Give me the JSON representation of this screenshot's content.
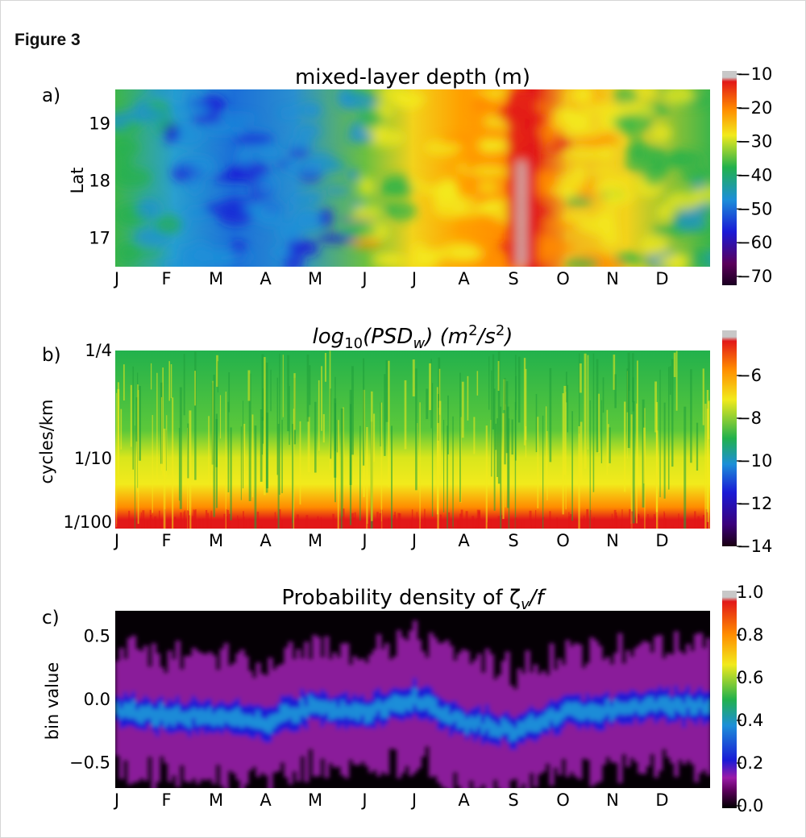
{
  "figure_label": "Figure 3",
  "chart_data": [
    {
      "panel": "a)",
      "type": "heatmap",
      "title": "mixed-layer depth (m)",
      "ylabel": "Lat",
      "xlabel": "",
      "x_ticks": [
        "J",
        "F",
        "M",
        "A",
        "M",
        "J",
        "J",
        "A",
        "S",
        "O",
        "N",
        "D"
      ],
      "y_ticks": [
        "19",
        "18",
        "17"
      ],
      "ylim": [
        16.5,
        19.6
      ],
      "colorbar_ticks": [
        "−10",
        "−20",
        "−30",
        "−40",
        "−50",
        "−60",
        "−70"
      ],
      "colorbar_range": [
        -72,
        -8
      ],
      "colormap": [
        "#5a005a",
        "#1a1ad6",
        "#1c8fd8",
        "#22b14c",
        "#f2ea1c",
        "#ff8c00",
        "#e21818",
        "#c8c8c8"
      ],
      "monthly_mean_mld": [
        -45,
        -52,
        -58,
        -55,
        -50,
        -30,
        -28,
        -25,
        -15,
        -28,
        -35,
        -40
      ]
    },
    {
      "panel": "b)",
      "type": "heatmap",
      "title_parts": {
        "pre": "log",
        "sub1": "10",
        "mid": "(PSD",
        "sub2": "w",
        "post": ") (m",
        "sup1": "2",
        "slash": "/s",
        "sup2": "2",
        "end": ")"
      },
      "ylabel": "cycles/km",
      "xlabel": "",
      "x_ticks": [
        "J",
        "F",
        "M",
        "A",
        "M",
        "J",
        "J",
        "A",
        "S",
        "O",
        "N",
        "D"
      ],
      "y_ticks": [
        "1/4",
        "1/10",
        "1/100"
      ],
      "colorbar_ticks": [
        "−6",
        "−8",
        "−10",
        "−12",
        "−14"
      ],
      "colorbar_range": [
        -14.5,
        -4.5
      ],
      "colormap": [
        "#1a0010",
        "#3a007a",
        "#1a1ad6",
        "#1c8fd8",
        "#22b14c",
        "#f2ea1c",
        "#ff8c00",
        "#e21818",
        "#c8c8c8"
      ]
    },
    {
      "panel": "c)",
      "type": "heatmap",
      "title": "Probability density of ζ",
      "title_sub": "v",
      "title_end": "/f",
      "ylabel": "bin value",
      "xlabel": "",
      "x_ticks": [
        "J",
        "F",
        "M",
        "A",
        "M",
        "J",
        "J",
        "A",
        "S",
        "O",
        "N",
        "D"
      ],
      "y_ticks": [
        "0.5",
        "0.0",
        "−0.5"
      ],
      "ylim": [
        -0.7,
        0.7
      ],
      "colorbar_ticks": [
        "1.0",
        "0.8",
        "0.6",
        "0.4",
        "0.2",
        "0.0"
      ],
      "colorbar_range": [
        0,
        1
      ],
      "colormap": [
        "#000000",
        "#5a005a",
        "#9b1aa8",
        "#1a1ad6",
        "#1c8fd8",
        "#22b14c",
        "#f2ea1c",
        "#ff8c00",
        "#e21818",
        "#c8c8c8"
      ],
      "monthly_center": [
        -0.1,
        -0.12,
        -0.15,
        -0.18,
        -0.05,
        -0.1,
        0.0,
        -0.18,
        -0.25,
        -0.1,
        -0.08,
        -0.05
      ]
    }
  ]
}
